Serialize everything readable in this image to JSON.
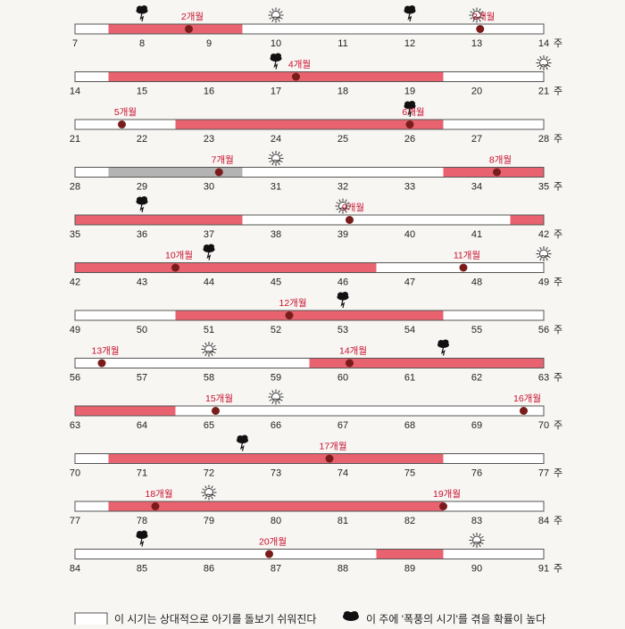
{
  "colors": {
    "stormy": "#e8636f",
    "calm_fill": "#ffffff",
    "neutral": "#b3b3b3",
    "bar_outline": "#555555",
    "milestone_dot": "#7a1c1c",
    "milestone_label": "#c8102e",
    "axis_text": "#222222"
  },
  "week_unit": "주",
  "chart_data": {
    "type": "timeline",
    "x_unit": "weeks",
    "rows": [
      {
        "start": 7,
        "end": 14,
        "segments": [
          {
            "from": 7.5,
            "to": 9.5,
            "kind": "stormy"
          }
        ],
        "milestones": [
          {
            "week": 8.7,
            "label": "2개월"
          },
          {
            "week": 13.05,
            "label": "3개월"
          }
        ],
        "storm_icons": [
          8,
          12
        ],
        "sun_icons": [
          10,
          13
        ]
      },
      {
        "start": 14,
        "end": 21,
        "segments": [
          {
            "from": 14.5,
            "to": 19.5,
            "kind": "stormy"
          }
        ],
        "milestones": [
          {
            "week": 17.3,
            "label": "4개월"
          }
        ],
        "storm_icons": [
          17
        ],
        "sun_icons": [
          21
        ]
      },
      {
        "start": 21,
        "end": 28,
        "segments": [
          {
            "from": 22.5,
            "to": 26.5,
            "kind": "stormy"
          }
        ],
        "milestones": [
          {
            "week": 21.7,
            "label": "5개월"
          },
          {
            "week": 26.0,
            "label": "6개월"
          }
        ],
        "storm_icons": [
          26
        ],
        "sun_icons": []
      },
      {
        "start": 28,
        "end": 35,
        "segments": [
          {
            "from": 28.5,
            "to": 30.5,
            "kind": "neutral"
          },
          {
            "from": 33.5,
            "to": 35,
            "kind": "stormy"
          }
        ],
        "milestones": [
          {
            "week": 30.15,
            "label": "7개월"
          },
          {
            "week": 34.3,
            "label": "8개월"
          }
        ],
        "storm_icons": [],
        "sun_icons": [
          31
        ]
      },
      {
        "start": 35,
        "end": 42,
        "segments": [
          {
            "from": 35,
            "to": 37.5,
            "kind": "stormy"
          },
          {
            "from": 41.5,
            "to": 42,
            "kind": "stormy"
          }
        ],
        "milestones": [
          {
            "week": 39.1,
            "label": "9개월"
          }
        ],
        "storm_icons": [
          36
        ],
        "sun_icons": [
          39
        ]
      },
      {
        "start": 42,
        "end": 49,
        "segments": [
          {
            "from": 42,
            "to": 46.5,
            "kind": "stormy"
          }
        ],
        "milestones": [
          {
            "week": 43.5,
            "label": "10개월"
          },
          {
            "week": 47.8,
            "label": "11개월"
          }
        ],
        "storm_icons": [
          44
        ],
        "sun_icons": [
          49
        ]
      },
      {
        "start": 49,
        "end": 56,
        "segments": [
          {
            "from": 50.5,
            "to": 54.5,
            "kind": "stormy"
          }
        ],
        "milestones": [
          {
            "week": 52.2,
            "label": "12개월"
          }
        ],
        "storm_icons": [
          53
        ],
        "sun_icons": []
      },
      {
        "start": 56,
        "end": 63,
        "segments": [
          {
            "from": 59.5,
            "to": 63,
            "kind": "stormy"
          }
        ],
        "milestones": [
          {
            "week": 56.4,
            "label": "13개월"
          },
          {
            "week": 60.1,
            "label": "14개월"
          }
        ],
        "storm_icons": [
          61.5
        ],
        "sun_icons": [
          58
        ]
      },
      {
        "start": 63,
        "end": 70,
        "segments": [
          {
            "from": 63,
            "to": 64.5,
            "kind": "stormy"
          }
        ],
        "milestones": [
          {
            "week": 65.1,
            "label": "15개월"
          },
          {
            "week": 69.7,
            "label": "16개월"
          }
        ],
        "storm_icons": [],
        "sun_icons": [
          66
        ]
      },
      {
        "start": 70,
        "end": 77,
        "segments": [
          {
            "from": 70.5,
            "to": 75.5,
            "kind": "stormy"
          }
        ],
        "milestones": [
          {
            "week": 73.8,
            "label": "17개월"
          }
        ],
        "storm_icons": [
          72.5
        ],
        "sun_icons": []
      },
      {
        "start": 77,
        "end": 84,
        "segments": [
          {
            "from": 77.5,
            "to": 82.5,
            "kind": "stormy"
          }
        ],
        "milestones": [
          {
            "week": 78.2,
            "label": "18개월"
          },
          {
            "week": 82.5,
            "label": "19개월"
          }
        ],
        "storm_icons": [],
        "sun_icons": [
          79
        ]
      },
      {
        "start": 84,
        "end": 91,
        "segments": [
          {
            "from": 88.5,
            "to": 89.5,
            "kind": "stormy"
          }
        ],
        "milestones": [
          {
            "week": 86.9,
            "label": "20개월"
          }
        ],
        "storm_icons": [
          85
        ],
        "sun_icons": [
          90
        ]
      }
    ]
  },
  "legend": {
    "calm_text": "이 시기는 상대적으로 아기를 돌보기 쉬워진다",
    "storm_text": "이 주에 '폭풍의 시기'를 겪을 확률이 높다"
  }
}
